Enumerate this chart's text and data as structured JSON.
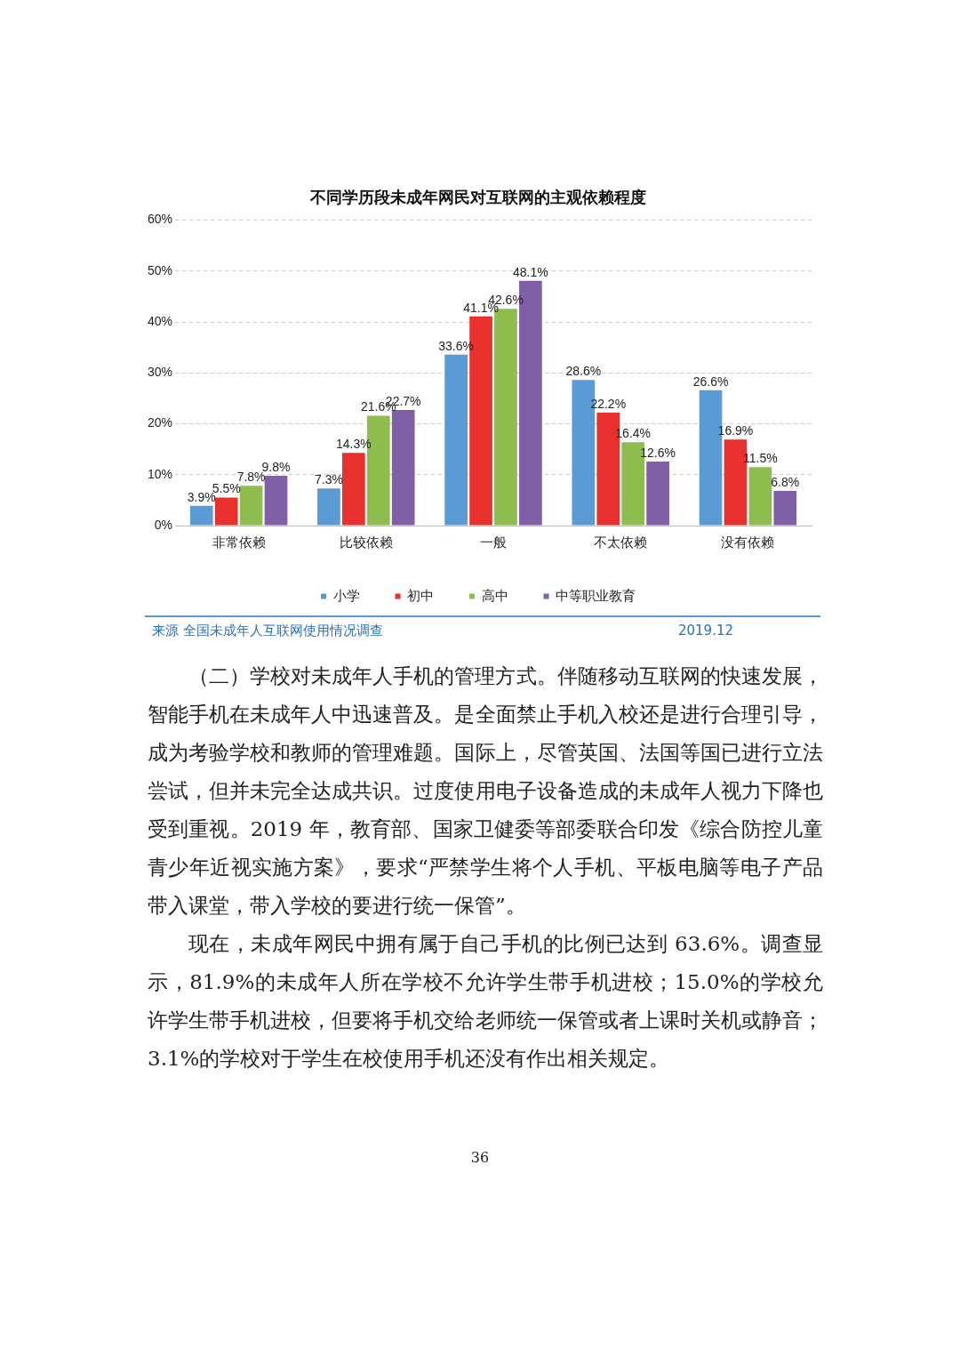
{
  "chart_data": {
    "type": "bar",
    "title": "不同学历段未成年网民对互联网的主观依赖程度",
    "categories": [
      "非常依赖",
      "比较依赖",
      "一般",
      "不太依赖",
      "没有依赖"
    ],
    "series": [
      {
        "name": "小学",
        "color": "#5b9bd5",
        "values": [
          3.9,
          7.3,
          33.6,
          28.6,
          26.6
        ],
        "value_labels": [
          "3.9%",
          "7.3%",
          "33.6%",
          "28.6%",
          "26.6%"
        ]
      },
      {
        "name": "初中",
        "color": "#e8312f",
        "values": [
          5.5,
          14.3,
          41.1,
          22.2,
          16.9
        ],
        "value_labels": [
          "5.5%",
          "14.3%",
          "41.1%",
          "22.2%",
          "16.9%"
        ]
      },
      {
        "name": "高中",
        "color": "#8fbc4f",
        "values": [
          7.8,
          21.6,
          42.6,
          16.4,
          11.5
        ],
        "value_labels": [
          "7.8%",
          "21.6%",
          "42.6%",
          "16.4%",
          "11.5%"
        ]
      },
      {
        "name": "中等职业教育",
        "color": "#7f5fa6",
        "values": [
          9.8,
          22.7,
          48.1,
          12.6,
          6.8
        ],
        "value_labels": [
          "9.8%",
          "22.7%",
          "48.1%",
          "12.6%",
          "6.8%"
        ]
      }
    ],
    "ylim": [
      0,
      60
    ],
    "yticks": [
      {
        "value": 0,
        "label": "0%"
      },
      {
        "value": 10,
        "label": "10%"
      },
      {
        "value": 20,
        "label": "20%"
      },
      {
        "value": 30,
        "label": "30%"
      },
      {
        "value": 40,
        "label": "40%"
      },
      {
        "value": 50,
        "label": "50%"
      },
      {
        "value": 60,
        "label": "60%"
      }
    ],
    "grid": "y",
    "legend": "bottom",
    "annotations": [
      "来源 全国未成年人互联网使用情况调查",
      "2019.12",
      "（二）学校对未成年人手机的管理方式。伴随移动互联网的快速发展，智能手机在未成年人中迅速普及。是全面禁止手机入校还是进行合理引导，成为考验学校和教师的管理难题。国际上，尽管英国、法国等国已进行立法尝试，但并未完全达成共识。过度使用电子设备造成的未成年人视力下降也受到重视。2019 年，教育部、国家卫健委等部委联合印发《综合防控儿童青少年近视实施方案》，要求“严禁学生将个人手机、平板电脑等电子产品带入课堂，带入学校的要进行统一保管”。",
      "现在，未成年网民中拥有属于自己手机的比例已达到 63.6%。调查显示，81.9%的未成年人所在学校不允许学生带手机进校；15.0%的学校允许学生带手机进校，但要将手机交给老师统一保管或者上课时关机或静音；3.1%的学校对于学生在校使用手机还没有作出相关规定。",
      "36"
    ]
  }
}
